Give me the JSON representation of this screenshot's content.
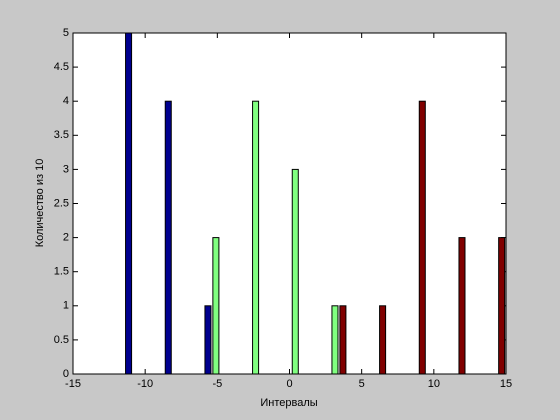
{
  "chart_data": {
    "type": "bar",
    "xlabel": "Интервалы",
    "ylabel": "Количество из 10",
    "x": [
      -10.6,
      -7.85,
      -5.1,
      -2.35,
      0.4,
      3.15,
      5.9,
      8.65,
      11.4,
      14.15
    ],
    "series": [
      {
        "color": "#00008f",
        "values": [
          5,
          4,
          1,
          0,
          0,
          0,
          0,
          0,
          0,
          0
        ]
      },
      {
        "color": "#80ff80",
        "values": [
          0,
          0,
          2,
          4,
          3,
          1,
          0,
          0,
          0,
          0
        ]
      },
      {
        "color": "#800000",
        "values": [
          0,
          0,
          0,
          0,
          0,
          1,
          1,
          4,
          2,
          2
        ]
      }
    ],
    "xlim": [
      -15,
      15
    ],
    "xticks": [
      -15,
      -10,
      -5,
      0,
      5,
      10,
      15
    ],
    "ylim": [
      0,
      5
    ],
    "yticks": [
      0,
      0.5,
      1,
      1.5,
      2,
      2.5,
      3,
      3.5,
      4,
      4.5,
      5
    ]
  }
}
